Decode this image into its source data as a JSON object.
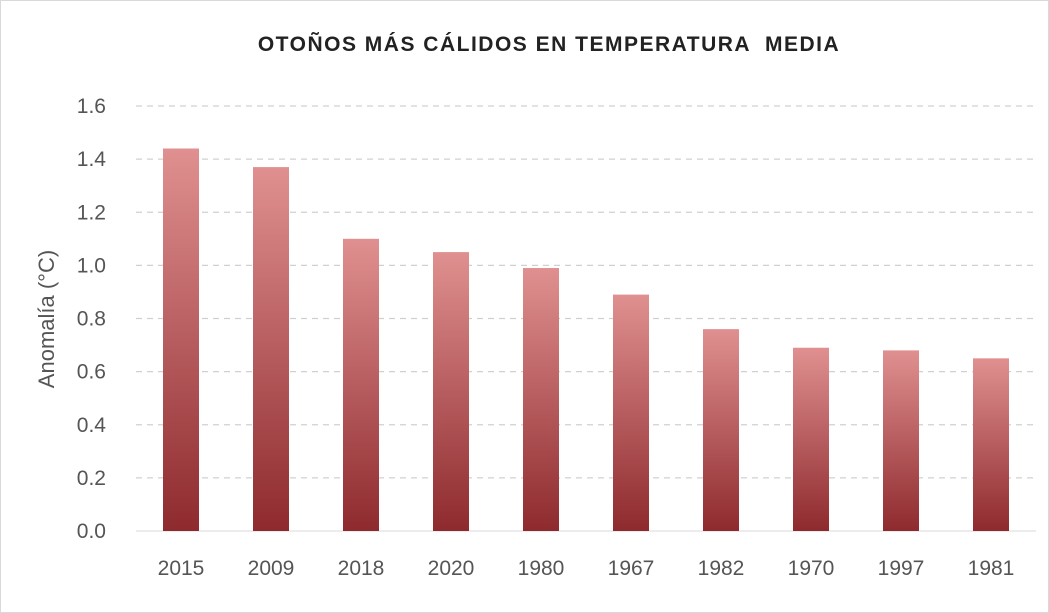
{
  "chart_data": {
    "type": "bar",
    "title": "OTOÑOS MÁS CÁLIDOS EN TEMPERATURA  MEDIA",
    "xlabel": "",
    "ylabel": "Anomalía (°C)",
    "categories": [
      "2015",
      "2009",
      "2018",
      "2020",
      "1980",
      "1967",
      "1982",
      "1970",
      "1997",
      "1981"
    ],
    "values": [
      1.44,
      1.37,
      1.1,
      1.05,
      0.99,
      0.89,
      0.76,
      0.69,
      0.68,
      0.65
    ],
    "ylim": [
      0,
      1.6
    ],
    "yticks": [
      "0.0",
      "0.2",
      "0.4",
      "0.6",
      "0.8",
      "1.0",
      "1.2",
      "1.4",
      "1.6"
    ],
    "grid": true,
    "legend": "none",
    "colors": {
      "bar_top": "#e09090",
      "bar_bottom": "#8e2a2e",
      "grid": "#d0d0d0"
    }
  }
}
